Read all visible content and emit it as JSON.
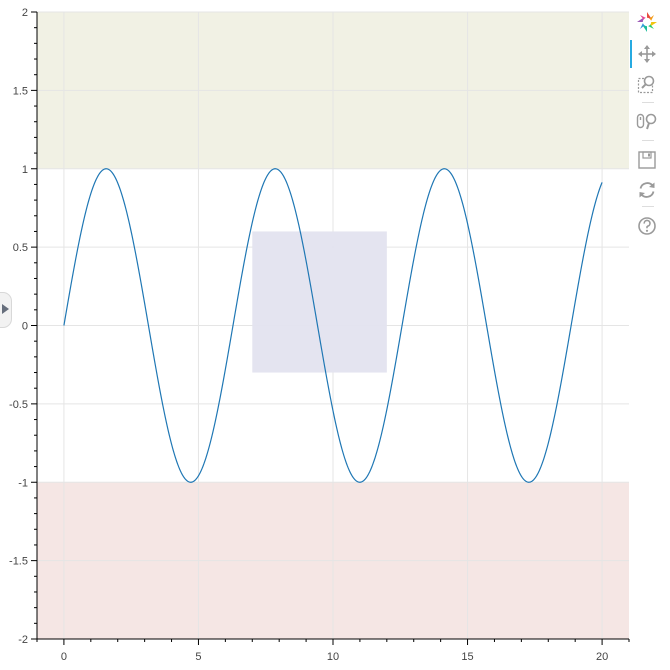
{
  "chart_data": {
    "type": "line",
    "title": "",
    "xlabel": "",
    "ylabel": "",
    "xlim": [
      -1,
      21
    ],
    "ylim": [
      -2,
      2
    ],
    "x_ticks": [
      0,
      5,
      10,
      15,
      20
    ],
    "x_tick_labels": [
      "0",
      "5",
      "10",
      "15",
      "20"
    ],
    "y_ticks": [
      -2,
      -1.5,
      -1,
      -0.5,
      0,
      0.5,
      1,
      1.5,
      2
    ],
    "y_tick_labels": [
      "-2",
      "-1.5",
      "-1",
      "-0.5",
      "0",
      "0.5",
      "1",
      "1.5",
      "2"
    ],
    "grid": true,
    "series": [
      {
        "function": "sin(x)",
        "color": "#1f77b4",
        "x_start": 0,
        "x_end": 20,
        "x": [
          0,
          1,
          2,
          3,
          4,
          5,
          6,
          7,
          8,
          9,
          10,
          11,
          12,
          13,
          14,
          15,
          16,
          17,
          18,
          19,
          20
        ],
        "y": [
          0,
          0.84,
          0.91,
          0.14,
          -0.76,
          -0.96,
          -0.28,
          0.66,
          0.99,
          0.41,
          -0.54,
          -1.0,
          -0.54,
          0.42,
          0.99,
          0.65,
          -0.29,
          -0.96,
          -0.75,
          0.15,
          0.91
        ]
      }
    ],
    "bands": [
      {
        "name": "upper-band",
        "y_from": 1,
        "y_to": 2,
        "color": "#f1f1e4"
      },
      {
        "name": "lower-band",
        "y_from": -2,
        "y_to": -1,
        "color": "#f5e6e4"
      }
    ],
    "box_annotation": {
      "x_from": 7,
      "x_to": 12,
      "y_from": -0.3,
      "y_to": 0.6,
      "color": "#e3e3ef"
    }
  },
  "toolbar": {
    "tools": [
      {
        "name": "bokeh-logo-icon"
      },
      {
        "name": "pan-icon",
        "active": true
      },
      {
        "name": "box-zoom-icon"
      },
      {
        "name": "wheel-zoom-icon"
      },
      {
        "name": "save-icon"
      },
      {
        "name": "reset-icon"
      },
      {
        "name": "help-icon"
      }
    ]
  }
}
